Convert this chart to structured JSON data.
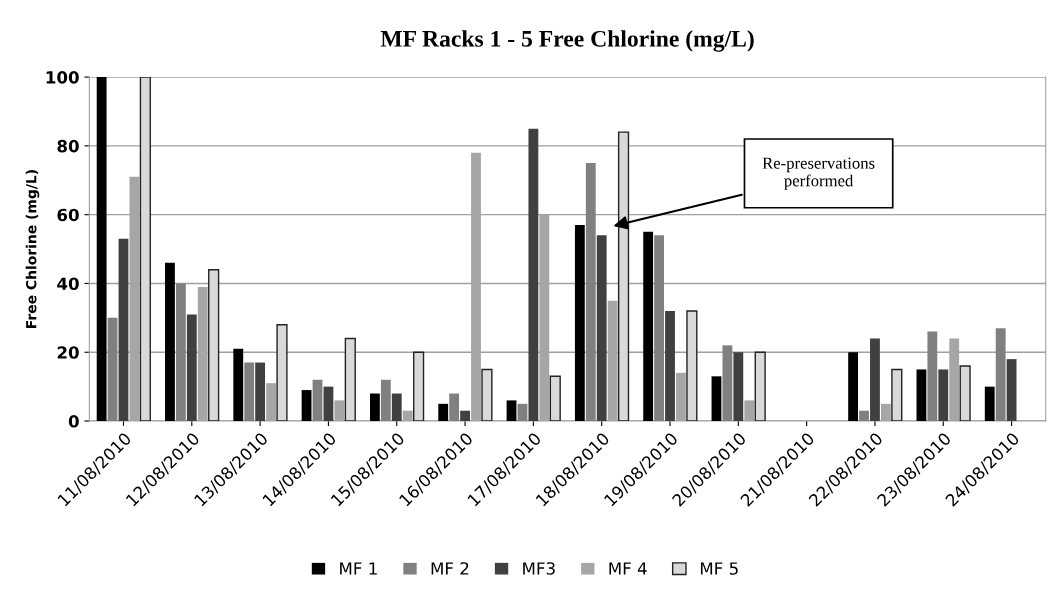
{
  "chart_data": {
    "type": "bar",
    "title": "MF Racks 1 - 5 Free Chlorine (mg/L)",
    "ylabel": "Free Chlorine (mg/L)",
    "categories": [
      "11/08/2010",
      "12/08/2010",
      "13/08/2010",
      "14/08/2010",
      "15/08/2010",
      "16/08/2010",
      "17/08/2010",
      "18/08/2010",
      "19/08/2010",
      "20/08/2010",
      "21/08/2010",
      "22/08/2010",
      "23/08/2010",
      "24/08/2010"
    ],
    "series": [
      {
        "name": "MF 1",
        "color": "#000000",
        "values": [
          100,
          46,
          21,
          9,
          8,
          5,
          6,
          57,
          55,
          13,
          null,
          20,
          15,
          10
        ]
      },
      {
        "name": "MF 2",
        "color": "#808080",
        "values": [
          30,
          40,
          17,
          12,
          12,
          8,
          5,
          75,
          54,
          22,
          null,
          3,
          26,
          27
        ]
      },
      {
        "name": "MF3",
        "color": "#404040",
        "values": [
          53,
          31,
          17,
          10,
          8,
          3,
          85,
          54,
          32,
          20,
          null,
          24,
          15,
          18
        ]
      },
      {
        "name": "MF 4",
        "color": "#a6a6a6",
        "values": [
          71,
          39,
          11,
          6,
          3,
          78,
          60,
          35,
          14,
          6,
          null,
          5,
          24,
          null
        ]
      },
      {
        "name": "MF 5",
        "color": "#d9d9d9",
        "values": [
          100,
          44,
          28,
          24,
          20,
          15,
          13,
          84,
          32,
          20,
          null,
          15,
          16,
          null
        ]
      }
    ],
    "ylim": [
      0,
      100
    ],
    "yticks": [
      0,
      20,
      40,
      60,
      80,
      100
    ],
    "grid": "y",
    "legend": "bottom",
    "annotations": [
      "Re-preservations\nperformed"
    ]
  }
}
